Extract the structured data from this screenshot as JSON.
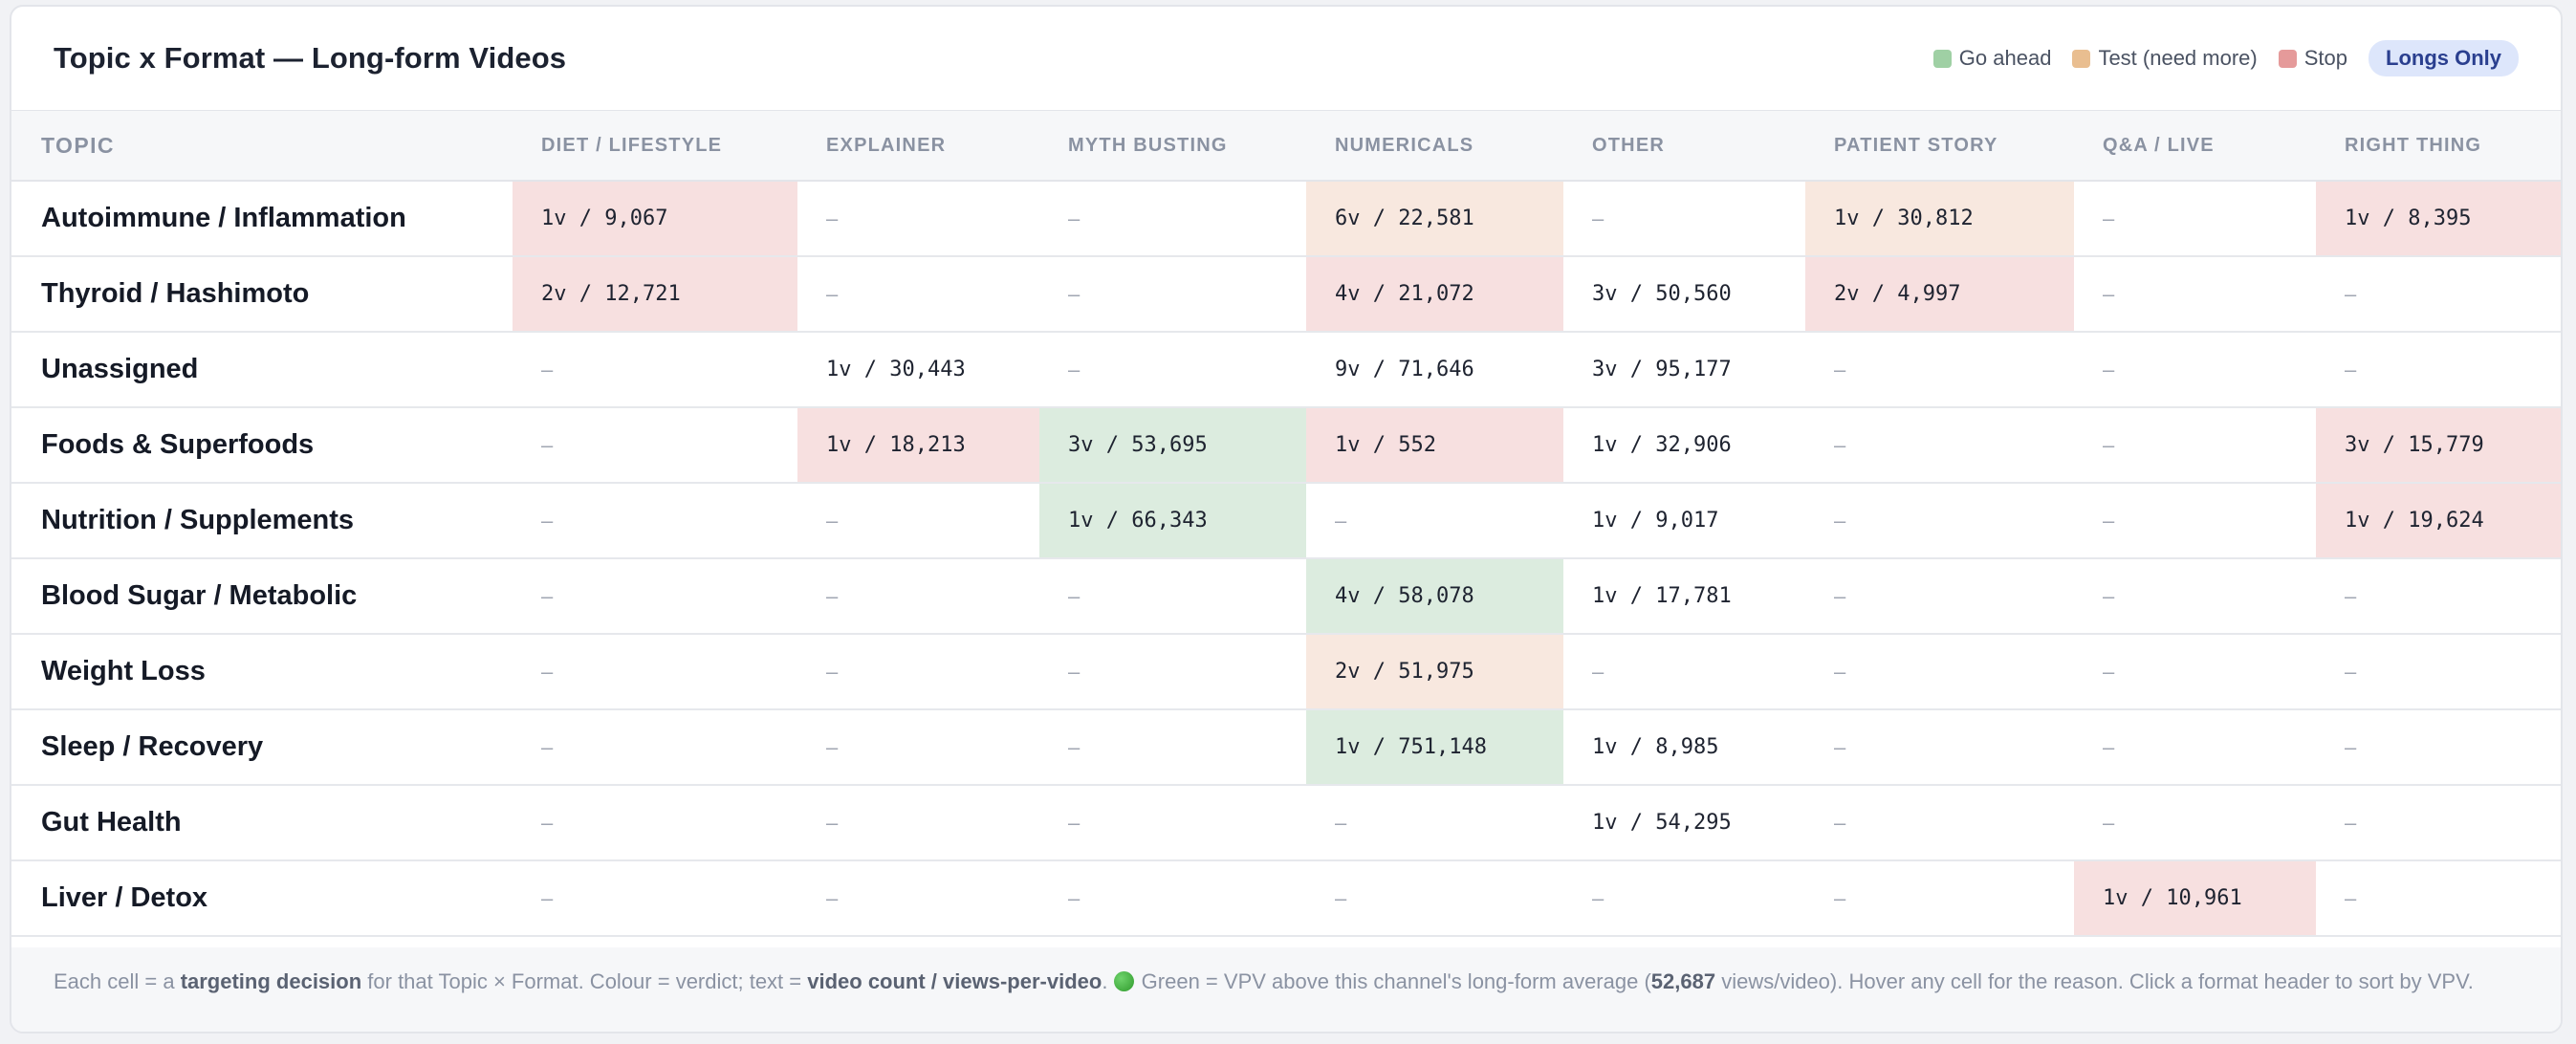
{
  "title": "Topic x Format — Long-form Videos",
  "legend": {
    "go": {
      "label": "Go ahead",
      "color": "#9fd0a4"
    },
    "test": {
      "label": "Test (need more)",
      "color": "#e9be90"
    },
    "stop": {
      "label": "Stop",
      "color": "#e59a9a"
    }
  },
  "filter_badge": "Longs Only",
  "columns": {
    "topic": "TOPIC",
    "formats": [
      "DIET / LIFESTYLE",
      "EXPLAINER",
      "MYTH BUSTING",
      "NUMERICALS",
      "OTHER",
      "PATIENT STORY",
      "Q&A / LIVE",
      "RIGHT THING"
    ]
  },
  "empty_symbol": "–",
  "rows": [
    {
      "topic": "Autoimmune / Inflammation",
      "cells": [
        {
          "text": "1v / 9,067",
          "verdict": "stop"
        },
        {
          "text": "–",
          "verdict": ""
        },
        {
          "text": "–",
          "verdict": ""
        },
        {
          "text": "6v / 22,581",
          "verdict": "test"
        },
        {
          "text": "–",
          "verdict": ""
        },
        {
          "text": "1v / 30,812",
          "verdict": "test"
        },
        {
          "text": "–",
          "verdict": ""
        },
        {
          "text": "1v / 8,395",
          "verdict": "stop"
        }
      ]
    },
    {
      "topic": "Thyroid / Hashimoto",
      "cells": [
        {
          "text": "2v / 12,721",
          "verdict": "stop"
        },
        {
          "text": "–",
          "verdict": ""
        },
        {
          "text": "–",
          "verdict": ""
        },
        {
          "text": "4v / 21,072",
          "verdict": "stop"
        },
        {
          "text": "3v / 50,560",
          "verdict": ""
        },
        {
          "text": "2v / 4,997",
          "verdict": "stop"
        },
        {
          "text": "–",
          "verdict": ""
        },
        {
          "text": "–",
          "verdict": ""
        }
      ]
    },
    {
      "topic": "Unassigned",
      "cells": [
        {
          "text": "–",
          "verdict": ""
        },
        {
          "text": "1v / 30,443",
          "verdict": ""
        },
        {
          "text": "–",
          "verdict": ""
        },
        {
          "text": "9v / 71,646",
          "verdict": ""
        },
        {
          "text": "3v / 95,177",
          "verdict": ""
        },
        {
          "text": "–",
          "verdict": ""
        },
        {
          "text": "–",
          "verdict": ""
        },
        {
          "text": "–",
          "verdict": ""
        }
      ]
    },
    {
      "topic": "Foods & Superfoods",
      "cells": [
        {
          "text": "–",
          "verdict": ""
        },
        {
          "text": "1v / 18,213",
          "verdict": "stop"
        },
        {
          "text": "3v / 53,695",
          "verdict": "go"
        },
        {
          "text": "1v / 552",
          "verdict": "stop"
        },
        {
          "text": "1v / 32,906",
          "verdict": ""
        },
        {
          "text": "–",
          "verdict": ""
        },
        {
          "text": "–",
          "verdict": ""
        },
        {
          "text": "3v / 15,779",
          "verdict": "stop"
        }
      ]
    },
    {
      "topic": "Nutrition / Supplements",
      "cells": [
        {
          "text": "–",
          "verdict": ""
        },
        {
          "text": "–",
          "verdict": ""
        },
        {
          "text": "1v / 66,343",
          "verdict": "go"
        },
        {
          "text": "–",
          "verdict": ""
        },
        {
          "text": "1v / 9,017",
          "verdict": ""
        },
        {
          "text": "–",
          "verdict": ""
        },
        {
          "text": "–",
          "verdict": ""
        },
        {
          "text": "1v / 19,624",
          "verdict": "stop"
        }
      ]
    },
    {
      "topic": "Blood Sugar / Metabolic",
      "cells": [
        {
          "text": "–",
          "verdict": ""
        },
        {
          "text": "–",
          "verdict": ""
        },
        {
          "text": "–",
          "verdict": ""
        },
        {
          "text": "4v / 58,078",
          "verdict": "go"
        },
        {
          "text": "1v / 17,781",
          "verdict": ""
        },
        {
          "text": "–",
          "verdict": ""
        },
        {
          "text": "–",
          "verdict": ""
        },
        {
          "text": "–",
          "verdict": ""
        }
      ]
    },
    {
      "topic": "Weight Loss",
      "cells": [
        {
          "text": "–",
          "verdict": ""
        },
        {
          "text": "–",
          "verdict": ""
        },
        {
          "text": "–",
          "verdict": ""
        },
        {
          "text": "2v / 51,975",
          "verdict": "test"
        },
        {
          "text": "–",
          "verdict": ""
        },
        {
          "text": "–",
          "verdict": ""
        },
        {
          "text": "–",
          "verdict": ""
        },
        {
          "text": "–",
          "verdict": ""
        }
      ]
    },
    {
      "topic": "Sleep / Recovery",
      "cells": [
        {
          "text": "–",
          "verdict": ""
        },
        {
          "text": "–",
          "verdict": ""
        },
        {
          "text": "–",
          "verdict": ""
        },
        {
          "text": "1v / 751,148",
          "verdict": "go"
        },
        {
          "text": "1v / 8,985",
          "verdict": ""
        },
        {
          "text": "–",
          "verdict": ""
        },
        {
          "text": "–",
          "verdict": ""
        },
        {
          "text": "–",
          "verdict": ""
        }
      ]
    },
    {
      "topic": "Gut Health",
      "cells": [
        {
          "text": "–",
          "verdict": ""
        },
        {
          "text": "–",
          "verdict": ""
        },
        {
          "text": "–",
          "verdict": ""
        },
        {
          "text": "–",
          "verdict": ""
        },
        {
          "text": "1v / 54,295",
          "verdict": ""
        },
        {
          "text": "–",
          "verdict": ""
        },
        {
          "text": "–",
          "verdict": ""
        },
        {
          "text": "–",
          "verdict": ""
        }
      ]
    },
    {
      "topic": "Liver / Detox",
      "cells": [
        {
          "text": "–",
          "verdict": ""
        },
        {
          "text": "–",
          "verdict": ""
        },
        {
          "text": "–",
          "verdict": ""
        },
        {
          "text": "–",
          "verdict": ""
        },
        {
          "text": "–",
          "verdict": ""
        },
        {
          "text": "–",
          "verdict": ""
        },
        {
          "text": "1v / 10,961",
          "verdict": "stop"
        },
        {
          "text": "–",
          "verdict": ""
        }
      ]
    }
  ],
  "footer": {
    "t1": "Each cell = a ",
    "b1": "targeting decision",
    "t2": " for that Topic × Format. Colour = verdict; text = ",
    "b2": "video count / views-per-video",
    "t3": ". ",
    "icon": "green-circle-icon",
    "t4": " Green = VPV above this channel's long-form average (",
    "b3": "52,687",
    "t5": " views/video). Hover any cell for the reason. Click a format header to sort by VPV."
  }
}
